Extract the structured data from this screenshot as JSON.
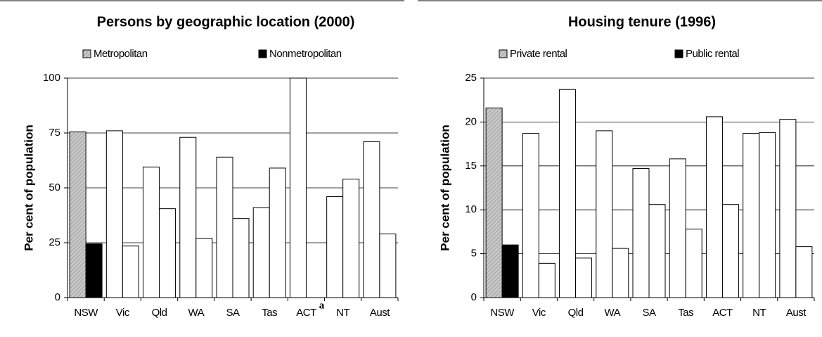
{
  "chart_data": [
    {
      "type": "bar",
      "title": "Persons by geographic location (2000)",
      "y_label": "Per cent of population",
      "categories": [
        "NSW",
        "Vic",
        "Qld",
        "WA",
        "SA",
        "Tas",
        "ACT",
        "NT",
        "Aust"
      ],
      "series": [
        {
          "name": "Metropolitan",
          "color": "#c0c0c0",
          "values": [
            75.5,
            76,
            59.5,
            73,
            64,
            41,
            100,
            46,
            71
          ]
        },
        {
          "name": "Nonmetropolitan",
          "color": "#000000",
          "values": [
            24.5,
            23.5,
            40.5,
            27,
            36,
            59,
            0,
            54,
            29
          ]
        }
      ],
      "highlight_index": 0,
      "other_color": "#ffffff",
      "annotation": {
        "text": "a",
        "index": 6
      },
      "ylim": [
        0,
        100
      ],
      "yticks": [
        0,
        25,
        50,
        75,
        100
      ],
      "grid": true
    },
    {
      "type": "bar",
      "title": "Housing tenure (1996)",
      "y_label": "Per cent of population",
      "categories": [
        "NSW",
        "Vic",
        "Qld",
        "WA",
        "SA",
        "Tas",
        "ACT",
        "NT",
        "Aust"
      ],
      "series": [
        {
          "name": "Private rental",
          "color": "#c0c0c0",
          "values": [
            21.6,
            18.7,
            23.7,
            19.0,
            14.7,
            15.8,
            20.6,
            18.7,
            20.3
          ]
        },
        {
          "name": "Public rental",
          "color": "#000000",
          "values": [
            6.0,
            3.9,
            4.5,
            5.6,
            10.6,
            7.8,
            10.6,
            18.8,
            5.8
          ]
        }
      ],
      "highlight_index": 0,
      "other_color": "#ffffff",
      "ylim": [
        0,
        25
      ],
      "yticks": [
        0,
        5,
        10,
        15,
        20,
        25
      ],
      "grid": true
    }
  ]
}
